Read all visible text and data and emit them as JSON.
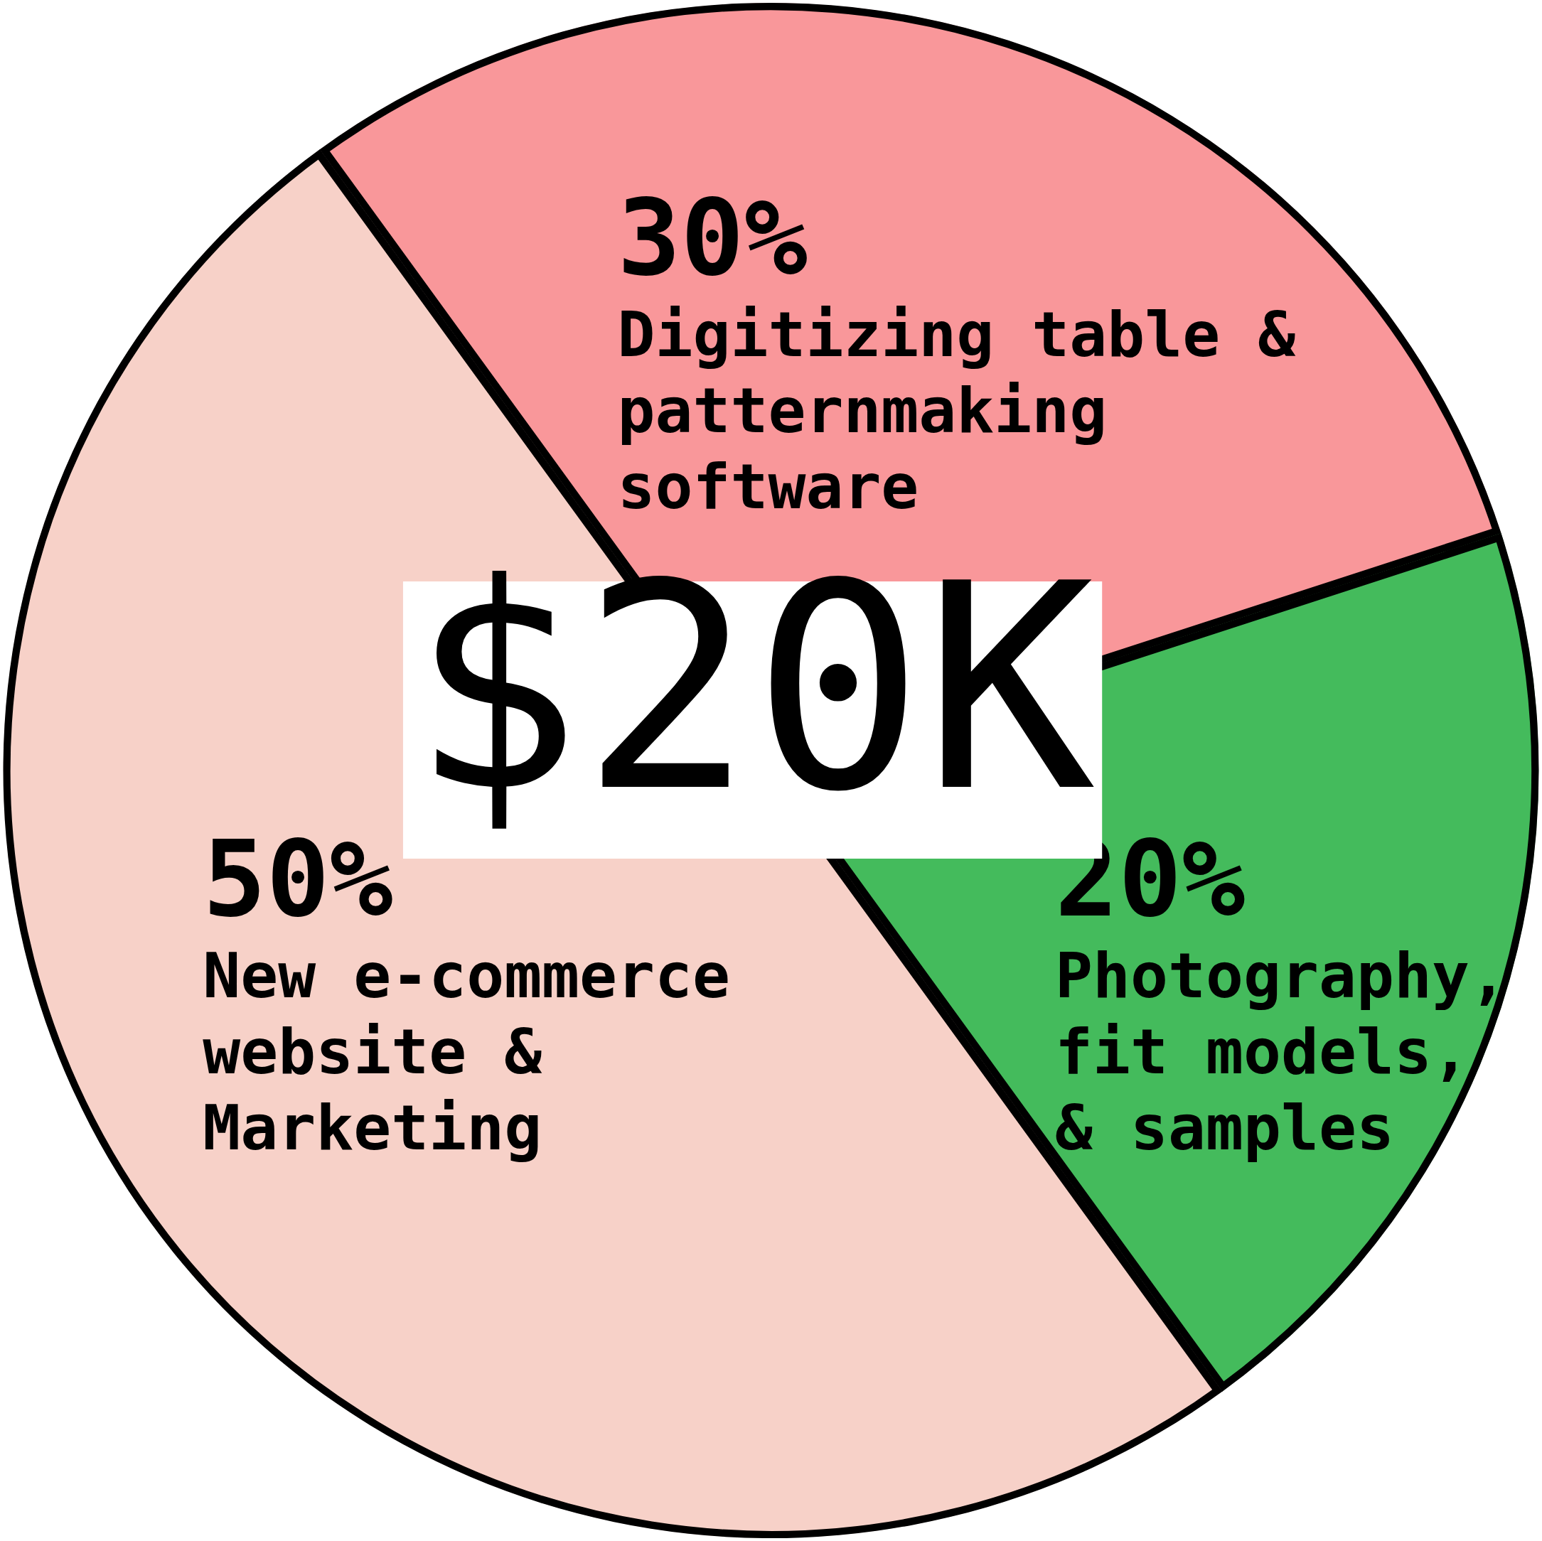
{
  "chart_data": {
    "type": "pie",
    "title": "$20K",
    "categories": [
      "Digitizing table & patternmaking software",
      "Photography, fit models, & samples",
      "New e-commerce website & Marketing"
    ],
    "values": [
      30,
      20,
      50
    ],
    "value_labels": [
      "30%",
      "20%",
      "50%"
    ],
    "colors": [
      "#f9979a",
      "#44bb5c",
      "#f7d1c8"
    ],
    "legend": false
  }
}
